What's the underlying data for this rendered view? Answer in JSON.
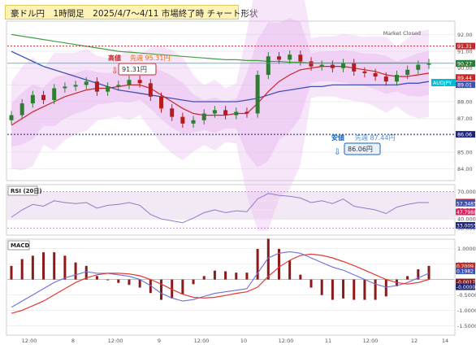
{
  "title": "豪ドル円　1時間足　2025/4/7〜4/11 市場終了時 チャート形状",
  "market_status": "Market Closed",
  "colors": {
    "candle_up": "#2e7d32",
    "candle_down": "#b71c1c",
    "ma_short": "#c62828",
    "ma_mid": "#3f51b5",
    "ma_long": "#43a047",
    "bollinger": "#e7b8f0",
    "current_price": "#00bcd4",
    "rsi": "#8e7bc8",
    "macd": "#6f6fd8",
    "signal": "#e53935",
    "histogram": "#8b1a1a"
  },
  "annotations": {
    "high_label": "高値",
    "high_value": "91.31円",
    "prev_week_high": "先週 95.31円",
    "low_label": "安値",
    "low_value": "86.06円",
    "prev_week_low": "先週 87.44円",
    "instrument": "AUDJPY"
  },
  "price_panel": {
    "right_labels": [
      "91.31",
      "90.29",
      "90.27",
      "89.44",
      "89.01",
      "86.06"
    ],
    "tick_labels": [
      "92.00",
      "91.00",
      "90.00",
      "89.00",
      "88.00",
      "87.00",
      "86.00",
      "85.00",
      "84.00"
    ]
  },
  "rsi_panel": {
    "title": "RSI (20日)",
    "right_labels": [
      "58.5297",
      "57.3485",
      "47.7988",
      "33.0055"
    ],
    "tick_labels": [
      "70.0000",
      "60.0000",
      "50.0000",
      "40.0000",
      "30.0000"
    ]
  },
  "macd_panel": {
    "title": "MACD",
    "right_labels": [
      "0.2009",
      "0.1982",
      "-0.0017",
      "-0.0000"
    ],
    "tick_labels": [
      "1.0000",
      "0.5000",
      "-0.5000",
      "-1.0000",
      "-1.5000"
    ]
  },
  "x_axis_labels": [
    "12:00",
    "8",
    "12:00",
    "9",
    "12:00",
    "10",
    "12:00",
    "11",
    "12:00",
    "12",
    "14"
  ],
  "chart_data": {
    "type": "line",
    "title": "豪ドル円　1時間足　2025/4/7〜4/11 市場終了時 チャート形状",
    "xlabel": "",
    "ylabel": "",
    "ylim": [
      83.5,
      92.6
    ],
    "grid": true,
    "x": [
      0,
      1,
      2,
      3,
      4,
      5,
      6,
      7,
      8,
      9,
      10,
      11,
      12,
      13,
      14,
      15,
      16,
      17,
      18,
      19,
      20,
      21,
      22,
      23,
      24,
      25,
      26,
      27,
      28,
      29,
      30,
      31,
      32,
      33,
      34,
      35,
      36,
      37,
      38,
      39
    ],
    "series": [
      {
        "name": "close",
        "values": [
          87.2,
          87.9,
          88.4,
          88.1,
          88.8,
          88.9,
          89.0,
          89.2,
          88.6,
          88.9,
          89.0,
          89.3,
          89.1,
          88.3,
          87.6,
          87.1,
          86.7,
          86.9,
          87.3,
          87.5,
          87.2,
          87.4,
          87.3,
          89.6,
          90.7,
          90.5,
          90.8,
          90.4,
          90.1,
          90.2,
          90.0,
          90.3,
          89.8,
          89.7,
          89.5,
          89.2,
          89.6,
          89.9,
          90.2,
          90.3
        ]
      },
      {
        "name": "ma_short",
        "values": [
          86.6,
          87.0,
          87.4,
          87.7,
          88.0,
          88.3,
          88.5,
          88.7,
          88.8,
          88.8,
          88.9,
          89.0,
          89.0,
          88.8,
          88.4,
          88.0,
          87.6,
          87.3,
          87.2,
          87.2,
          87.2,
          87.3,
          87.3,
          87.9,
          88.6,
          89.2,
          89.6,
          89.9,
          90.0,
          90.1,
          90.1,
          90.1,
          90.0,
          89.9,
          89.8,
          89.6,
          89.5,
          89.5,
          89.6,
          89.7
        ]
      },
      {
        "name": "ma_mid",
        "values": [
          91.0,
          90.7,
          90.4,
          90.1,
          89.9,
          89.7,
          89.5,
          89.3,
          89.1,
          88.9,
          88.7,
          88.6,
          88.5,
          88.4,
          88.3,
          88.2,
          88.1,
          88.0,
          88.0,
          88.0,
          88.0,
          88.0,
          88.1,
          88.2,
          88.4,
          88.6,
          88.7,
          88.8,
          88.9,
          88.9,
          89.0,
          89.0,
          89.0,
          89.0,
          89.0,
          89.0,
          89.0,
          89.1,
          89.1,
          89.2
        ]
      },
      {
        "name": "ma_long",
        "values": [
          92.0,
          91.9,
          91.8,
          91.7,
          91.6,
          91.5,
          91.4,
          91.3,
          91.2,
          91.1,
          91.0,
          90.95,
          90.9,
          90.85,
          90.8,
          90.75,
          90.7,
          90.65,
          90.6,
          90.55,
          90.5,
          90.5,
          90.45,
          90.45,
          90.4,
          90.4,
          90.35,
          90.35,
          90.3,
          90.3,
          90.3,
          90.3,
          90.3,
          90.3,
          90.3,
          90.3,
          90.3,
          90.3,
          90.3,
          90.3
        ]
      },
      {
        "name": "rsi",
        "values": [
          42,
          50,
          56,
          54,
          60,
          58,
          57,
          58,
          52,
          55,
          56,
          58,
          55,
          45,
          40,
          38,
          36,
          41,
          47,
          50,
          47,
          49,
          48,
          62,
          68,
          66,
          65,
          63,
          58,
          60,
          57,
          62,
          54,
          52,
          50,
          46,
          53,
          56,
          58,
          58
        ]
      },
      {
        "name": "macd",
        "values": [
          -0.9,
          -0.7,
          -0.5,
          -0.3,
          -0.1,
          0.05,
          0.15,
          0.25,
          0.2,
          0.2,
          0.15,
          0.1,
          0.0,
          -0.2,
          -0.45,
          -0.6,
          -0.7,
          -0.65,
          -0.55,
          -0.45,
          -0.4,
          -0.35,
          -0.3,
          0.2,
          0.7,
          0.85,
          0.9,
          0.85,
          0.7,
          0.55,
          0.4,
          0.3,
          0.15,
          0.0,
          -0.15,
          -0.25,
          -0.2,
          -0.1,
          0.05,
          0.2
        ]
      },
      {
        "name": "signal",
        "values": [
          -1.1,
          -1.0,
          -0.85,
          -0.7,
          -0.5,
          -0.3,
          -0.1,
          0.05,
          0.15,
          0.2,
          0.2,
          0.18,
          0.12,
          0.0,
          -0.15,
          -0.32,
          -0.48,
          -0.58,
          -0.6,
          -0.58,
          -0.52,
          -0.45,
          -0.4,
          -0.25,
          0.1,
          0.4,
          0.62,
          0.78,
          0.82,
          0.78,
          0.7,
          0.58,
          0.45,
          0.3,
          0.15,
          0.0,
          -0.1,
          -0.15,
          -0.1,
          0.0
        ]
      }
    ]
  }
}
